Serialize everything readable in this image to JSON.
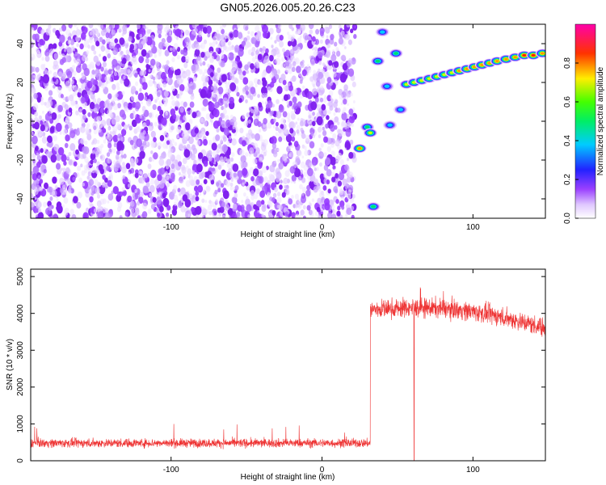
{
  "figure_title": "GN05.2026.005.20.26.C23",
  "chart_data": [
    {
      "type": "heatmap",
      "title": "GN05.2026.005.20.26.C23",
      "xlabel": "Height of straight line (km)",
      "ylabel": "Frequency (Hz)",
      "xlim": [
        -193,
        148
      ],
      "ylim": [
        -50,
        50
      ],
      "xticks": [
        -100,
        0,
        100
      ],
      "yticks": [
        -40,
        -20,
        0,
        20,
        40
      ],
      "grid": false,
      "noise_region_x": [
        -193,
        22
      ],
      "tracked_blobs": [
        {
          "x": 25,
          "y": -14,
          "amp": 0.85
        },
        {
          "x": 30,
          "y": -3,
          "amp": 0.6
        },
        {
          "x": 32,
          "y": -6,
          "amp": 0.7
        },
        {
          "x": 34,
          "y": -44,
          "amp": 0.6
        },
        {
          "x": 37,
          "y": 31,
          "amp": 0.6
        },
        {
          "x": 40,
          "y": 46,
          "amp": 0.55
        },
        {
          "x": 43,
          "y": 18,
          "amp": 0.55
        },
        {
          "x": 45,
          "y": -2,
          "amp": 0.55
        },
        {
          "x": 49,
          "y": 35,
          "amp": 0.65
        },
        {
          "x": 52,
          "y": 6,
          "amp": 0.55
        },
        {
          "x": 56,
          "y": 19,
          "amp": 0.75
        },
        {
          "x": 61,
          "y": 20,
          "amp": 0.75
        },
        {
          "x": 66,
          "y": 21,
          "amp": 0.75
        },
        {
          "x": 71,
          "y": 22,
          "amp": 0.8
        },
        {
          "x": 76,
          "y": 23,
          "amp": 0.8
        },
        {
          "x": 81,
          "y": 24,
          "amp": 0.8
        },
        {
          "x": 86,
          "y": 25,
          "amp": 0.8
        },
        {
          "x": 91,
          "y": 26,
          "amp": 0.85
        },
        {
          "x": 96,
          "y": 27,
          "amp": 0.85
        },
        {
          "x": 101,
          "y": 28,
          "amp": 0.85
        },
        {
          "x": 106,
          "y": 29,
          "amp": 0.85
        },
        {
          "x": 111,
          "y": 30,
          "amp": 0.9
        },
        {
          "x": 116,
          "y": 31,
          "amp": 0.9
        },
        {
          "x": 122,
          "y": 32,
          "amp": 0.9
        },
        {
          "x": 128,
          "y": 33,
          "amp": 0.92
        },
        {
          "x": 134,
          "y": 34,
          "amp": 0.95
        },
        {
          "x": 140,
          "y": 34,
          "amp": 0.95
        },
        {
          "x": 146,
          "y": 35,
          "amp": 0.9
        }
      ],
      "colorbar": {
        "label": "Normalized spectral amplitude",
        "ticks": [
          0.0,
          0.2,
          0.4,
          0.6,
          0.8
        ],
        "tick_labels": [
          "0.0",
          "0.2",
          "0.4",
          "0.6",
          "0.8"
        ],
        "range": [
          0,
          1
        ],
        "colormap": "rainbow (white-purple-blue-cyan-green-yellow-red-magenta)"
      }
    },
    {
      "type": "line",
      "xlabel": "Height of straight line (km)",
      "ylabel": "SNR (10 * v/v)",
      "xlim": [
        -193,
        148
      ],
      "ylim": [
        0,
        5200
      ],
      "xticks": [
        -100,
        0,
        100
      ],
      "yticks": [
        0,
        1000,
        2000,
        3000,
        4000,
        5000
      ],
      "grid": false,
      "series": [
        {
          "color": "#ee3333",
          "segments": [
            {
              "x_start": -193,
              "x_end": 32,
              "mean": 480,
              "spread": 150
            },
            {
              "x_start": 32,
              "x_end": 148,
              "mean_start": 4100,
              "mean_end": 3600,
              "spread": 300
            }
          ],
          "dropouts": [
            {
              "x": 61,
              "y": 0
            }
          ]
        }
      ]
    }
  ],
  "colors": {
    "line": "#ee3333",
    "noise_dots": "#8822ee"
  }
}
